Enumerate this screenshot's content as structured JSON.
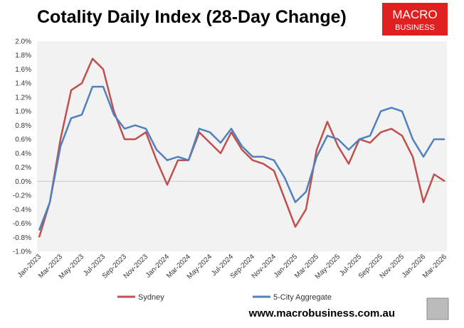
{
  "chart_data": {
    "type": "line",
    "title": "Cotality Daily Index (28-Day Change)",
    "logo": [
      "MACRO",
      "BUSINESS"
    ],
    "footer": "www.macrobusiness.com.au",
    "x": [
      "Jan-2023",
      "Feb-2023",
      "Mar-2023",
      "Apr-2023",
      "May-2023",
      "Jun-2023",
      "Jul-2023",
      "Aug-2023",
      "Sep-2023",
      "Oct-2023",
      "Nov-2023",
      "Dec-2023",
      "Jan-2024",
      "Feb-2024",
      "Mar-2024",
      "Apr-2024",
      "May-2024",
      "Jun-2024",
      "Jul-2024",
      "Aug-2024",
      "Sep-2024",
      "Oct-2024",
      "Nov-2024",
      "Dec-2024",
      "Jan-2025",
      "Feb-2025",
      "Mar-2025",
      "Apr-2025",
      "May-2025",
      "Jun-2025",
      "Jul-2025",
      "Aug-2025",
      "Sep-2025",
      "Oct-2025",
      "Nov-2025",
      "Dec-2025",
      "Jan-2026",
      "Feb-2026",
      "Mar-2026"
    ],
    "xticks": [
      "Jan-2023",
      "Mar-2023",
      "May-2023",
      "Jul-2023",
      "Sep-2023",
      "Nov-2023",
      "Jan-2024",
      "Mar-2024",
      "May-2024",
      "Jul-2024",
      "Sep-2024",
      "Nov-2024",
      "Jan-2025",
      "Mar-2025",
      "May-2025",
      "Jul-2025",
      "Sep-2025",
      "Nov-2025",
      "Jan-2026",
      "Mar-2026"
    ],
    "series": [
      {
        "name": "Sydney",
        "color": "#c0504d",
        "values": [
          -0.8,
          -0.3,
          0.6,
          1.3,
          1.4,
          1.75,
          1.6,
          1.0,
          0.6,
          0.6,
          0.7,
          0.3,
          -0.05,
          0.3,
          0.3,
          0.7,
          0.55,
          0.4,
          0.7,
          0.45,
          0.3,
          0.25,
          0.15,
          -0.25,
          -0.65,
          -0.4,
          0.45,
          0.85,
          0.5,
          0.25,
          0.6,
          0.55,
          0.7,
          0.75,
          0.65,
          0.35,
          -0.3,
          0.1,
          0.0
        ]
      },
      {
        "name": "5-City Aggregate",
        "color": "#4f81bd",
        "values": [
          -0.7,
          -0.3,
          0.5,
          0.9,
          0.95,
          1.35,
          1.35,
          0.95,
          0.75,
          0.8,
          0.75,
          0.45,
          0.3,
          0.35,
          0.3,
          0.75,
          0.7,
          0.55,
          0.75,
          0.5,
          0.35,
          0.35,
          0.3,
          0.05,
          -0.3,
          -0.15,
          0.35,
          0.65,
          0.6,
          0.45,
          0.6,
          0.65,
          1.0,
          1.05,
          1.0,
          0.6,
          0.35,
          0.6,
          0.6
        ]
      }
    ],
    "ylim": [
      -1.0,
      2.0
    ],
    "yticks": [
      {
        "value": -1.0,
        "label": "-1.0%"
      },
      {
        "value": -0.8,
        "label": "-0.8%"
      },
      {
        "value": -0.6,
        "label": "-0.6%"
      },
      {
        "value": -0.4,
        "label": "-0.4%"
      },
      {
        "value": -0.2,
        "label": "-0.2%"
      },
      {
        "value": 0.0,
        "label": "0.0%"
      },
      {
        "value": 0.2,
        "label": "0.2%"
      },
      {
        "value": 0.4,
        "label": "0.4%"
      },
      {
        "value": 0.6,
        "label": "0.6%"
      },
      {
        "value": 0.8,
        "label": "0.8%"
      },
      {
        "value": 1.0,
        "label": "1.0%"
      },
      {
        "value": 1.2,
        "label": "1.2%"
      },
      {
        "value": 1.4,
        "label": "1.4%"
      },
      {
        "value": 1.6,
        "label": "1.6%"
      },
      {
        "value": 1.8,
        "label": "1.8%"
      },
      {
        "value": 2.0,
        "label": "2.0%"
      }
    ],
    "legend": "bottom"
  }
}
